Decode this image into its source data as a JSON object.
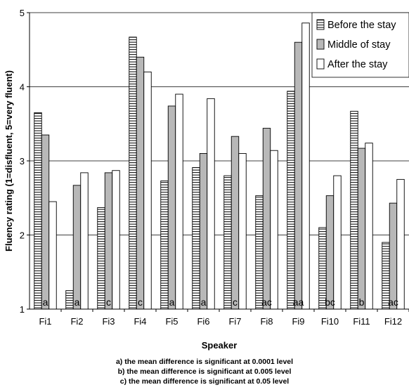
{
  "chart_data": {
    "type": "bar",
    "ylabel": "Fluency rating (1=disfluent, 5=very fluent)",
    "xlabel": "Speaker",
    "ylim": [
      1,
      5
    ],
    "yticks": [
      "1",
      "2",
      "3",
      "4",
      "5"
    ],
    "grid": true,
    "legend_position": "top-right",
    "categories": [
      "Fi1",
      "Fi2",
      "Fi3",
      "Fi4",
      "Fi5",
      "Fi6",
      "Fi7",
      "Fi8",
      "Fi9",
      "Fi10",
      "Fi11",
      "Fi12"
    ],
    "series": [
      {
        "name": "Before the stay",
        "pattern": "horizontal-stripes",
        "values": [
          3.65,
          1.25,
          2.37,
          4.67,
          2.73,
          2.91,
          2.8,
          2.53,
          3.94,
          2.1,
          3.67,
          1.9
        ]
      },
      {
        "name": "Middle of stay",
        "color": "#b8b8b8",
        "values": [
          3.35,
          2.67,
          2.84,
          4.4,
          3.74,
          3.1,
          3.33,
          3.44,
          4.6,
          2.53,
          3.17,
          2.43
        ]
      },
      {
        "name": "After the stay",
        "color": "#ffffff",
        "values": [
          2.45,
          2.84,
          2.87,
          4.2,
          3.9,
          3.84,
          3.1,
          3.14,
          4.86,
          2.8,
          3.24,
          2.75
        ]
      }
    ],
    "significance_labels": [
      "a",
      "a",
      "c",
      "c",
      "a",
      "a",
      "c",
      "ac",
      "aa",
      "bc",
      "b",
      "ac"
    ]
  },
  "footnotes": [
    "a) the mean difference is significant at 0.0001 level",
    "b) the mean difference is significant at 0.005 level",
    "c) the mean difference is significant at 0.05 level"
  ]
}
